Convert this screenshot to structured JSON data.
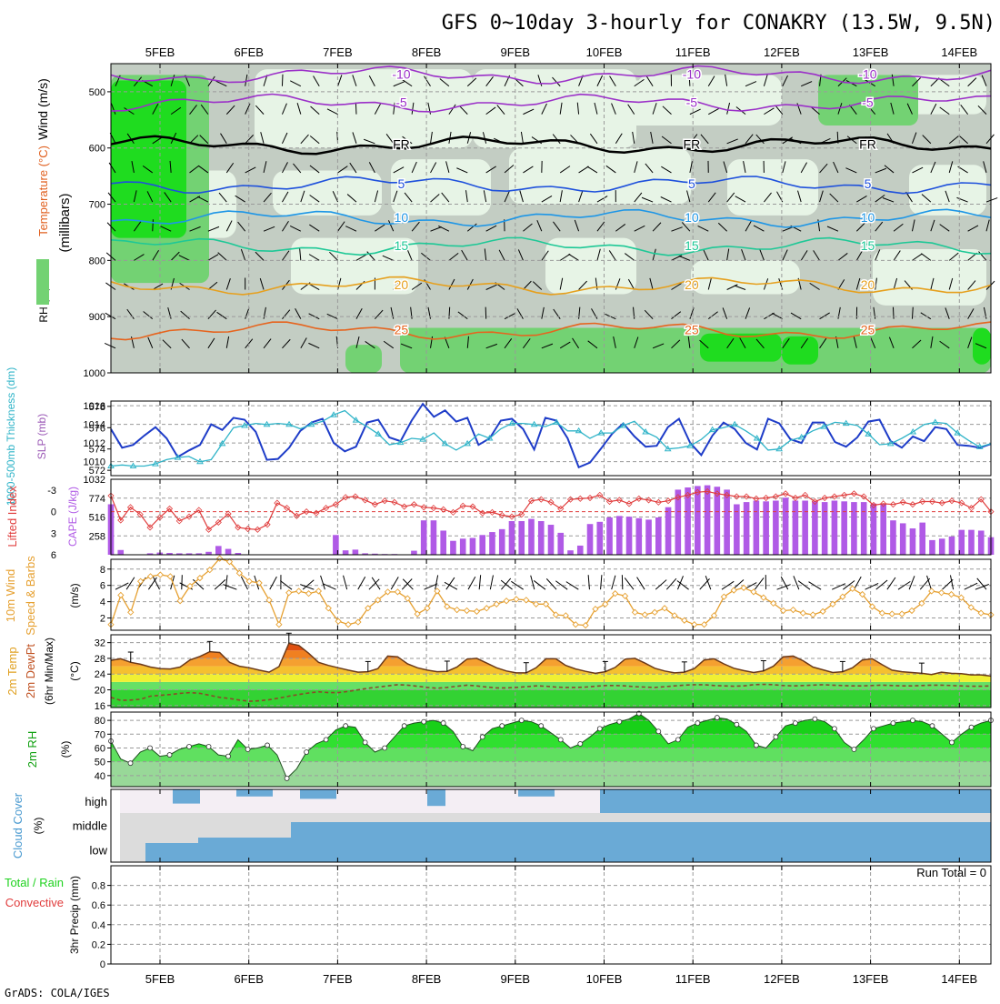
{
  "title": "GFS 0~10day 3-hourly for CONAKRY (13.5W, 9.5N)",
  "footer": "GrADS: COLA/IGES",
  "dates": [
    "5FEB",
    "6FEB",
    "7FEB",
    "8FEB",
    "9FEB",
    "10FEB",
    "11FEB",
    "12FEB",
    "13FEB",
    "14FEB"
  ],
  "colors": {
    "rh_dark": "#1fdc1f",
    "rh_mid": "#73d273",
    "rh_light_gray": "#c3cdc3",
    "rh_pale": "#e7f4e6",
    "temp_purple": "#9b30c8",
    "temp_blue": "#1e50dc",
    "temp_lblue": "#1e96e6",
    "temp_green": "#1ec896",
    "temp_orange": "#e6a01e",
    "temp_dorange": "#e6641e",
    "slp": "#1e3cc8",
    "thickness": "#30b4c8",
    "cape": "#b05ae6",
    "lifted": "#e03c3c",
    "wind10": "#e6a030",
    "temp2m": "#f5a030",
    "cloud": "#6aaad6",
    "precip": "#1ed21e"
  },
  "chart_data": [
    {
      "id": "upper-air",
      "type": "heatmap",
      "ylabel": "(millibars)",
      "yaxis_title_parts": [
        "RH (%)",
        "Temperature (°C)",
        "Wind (m/s)"
      ],
      "ylim": [
        1000,
        450
      ],
      "yticks": [
        500,
        600,
        700,
        800,
        900,
        1000
      ],
      "isotherms": [
        {
          "label": "-10",
          "pressure": 470
        },
        {
          "label": "-5",
          "pressure": 520
        },
        {
          "label": "FR",
          "pressure": 595
        },
        {
          "label": "5",
          "pressure": 665
        },
        {
          "label": "10",
          "pressure": 725
        },
        {
          "label": "15",
          "pressure": 775
        },
        {
          "label": "20",
          "pressure": 845
        },
        {
          "label": "25",
          "pressure": 925
        }
      ]
    },
    {
      "id": "slp-thickness",
      "type": "line",
      "ylabel_left": "1000-500mb Thickness (dm)",
      "ylabel_right": "SLP (mb)",
      "yticks_left": [
        572,
        574,
        576,
        578
      ],
      "yticks_right": [
        1010,
        1012,
        1014,
        1016
      ],
      "ylim_left": [
        571.5,
        578.5
      ],
      "ylim_right": [
        1008.5,
        1016.5
      ],
      "series": [
        {
          "name": "SLP (mb)",
          "axis": "right",
          "values": [
            1013.5,
            1011.5,
            1011.8,
            1012.8,
            1013.7,
            1012.5,
            1010.5,
            1011.2,
            1011.8,
            1014.0,
            1013.4,
            1014.7,
            1014.5,
            1013.2,
            1010.2,
            1010.3,
            1011.5,
            1013.3,
            1014.2,
            1014.6,
            1012.0,
            1011.1,
            1011.6,
            1014.2,
            1014.5,
            1012.6,
            1012.2,
            1014.4,
            1016.2,
            1014.8,
            1015.5,
            1014.3,
            1014.7,
            1011.8,
            1012.5,
            1014.4,
            1014.6,
            1013.5,
            1011.3,
            1014.7,
            1014.4,
            1012.5,
            1009.4,
            1009.9,
            1011.4,
            1013.0,
            1014.1,
            1012.7,
            1011.6,
            1011.7,
            1013.7,
            1014.6,
            1012.0,
            1010.7,
            1012.8,
            1014.2,
            1013.5,
            1012.0,
            1011.3,
            1014.6,
            1014.1,
            1012.4,
            1012.0,
            1014.2,
            1014.2,
            1012.1,
            1011.6,
            1012.6,
            1014.3,
            1014.5,
            1012.2,
            1011.5,
            1012.7,
            1012.2,
            1013.7,
            1013.5,
            1011.8,
            1011.7,
            1011.5,
            1011.9
          ]
        },
        {
          "name": "1000-500mb Thickness (dm)",
          "axis": "left",
          "values": [
            572.4,
            572.5,
            572.4,
            572.4,
            572.6,
            573.0,
            573.2,
            573.3,
            572.8,
            573.0,
            574.5,
            576.0,
            576.2,
            576.4,
            576.3,
            576.4,
            576.3,
            575.9,
            576.3,
            576.6,
            577.2,
            577.6,
            576.7,
            576.1,
            575.4,
            574.4,
            574.6,
            575.0,
            574.9,
            575.5,
            574.5,
            573.9,
            574.5,
            575.4,
            575.0,
            575.9,
            576.4,
            576.4,
            576.3,
            576.1,
            576.5,
            575.7,
            575.7,
            575.0,
            575.5,
            575.5,
            576.2,
            576.6,
            575.6,
            575.1,
            574.0,
            574.1,
            574.3,
            574.9,
            575.8,
            576.0,
            576.3,
            575.7,
            575.0,
            573.9,
            574.0,
            574.8,
            575.1,
            575.7,
            576.1,
            576.5,
            576.4,
            576.2,
            575.4,
            574.4,
            574.5,
            575.0,
            575.6,
            576.3,
            576.5,
            576.4,
            575.5,
            574.8,
            574.2,
            574.5
          ]
        }
      ]
    },
    {
      "id": "cape-lifted",
      "type": "bar",
      "ylabel_left": "Lifted Index",
      "ylabel_right": "CAPE (J/kg)",
      "yticks_left": [
        -3,
        0,
        3,
        6
      ],
      "yticks_left_labels": [
        "-3",
        "0",
        "3",
        "6"
      ],
      "yticks_right": [
        258,
        516,
        774,
        1032
      ],
      "ylim_right": [
        0,
        1032
      ],
      "series": [
        {
          "name": "CAPE (J/kg)",
          "values": [
            690,
            65,
            5,
            0,
            20,
            30,
            25,
            20,
            20,
            20,
            40,
            120,
            80,
            25,
            0,
            0,
            0,
            0,
            0,
            0,
            0,
            0,
            0,
            270,
            60,
            70,
            20,
            15,
            10,
            10,
            0,
            55,
            470,
            470,
            330,
            190,
            220,
            230,
            270,
            310,
            350,
            460,
            460,
            490,
            460,
            410,
            300,
            60,
            125,
            420,
            450,
            510,
            530,
            520,
            500,
            480,
            510,
            650,
            890,
            920,
            940,
            950,
            930,
            890,
            690,
            720,
            740,
            730,
            740,
            780,
            740,
            740,
            730,
            720,
            740,
            730,
            720,
            720,
            700,
            690,
            470,
            430,
            360,
            440,
            200,
            220,
            250,
            340,
            340,
            330,
            240
          ]
        },
        {
          "name": "Lifted Index",
          "values": [
            -2.2,
            1.2,
            -0.6,
            0.4,
            2.2,
            0.8,
            -0.4,
            1.3,
            0.7,
            -0.2,
            2.5,
            1.5,
            0.3,
            2.2,
            2.4,
            2.5,
            1.8,
            -1.2,
            -0.5,
            0.6,
            0.0,
            0.2,
            -0.5,
            -1.0,
            -2.0,
            -2.1,
            -1.6,
            -1.0,
            -1.5,
            -1.3,
            -0.7,
            -1.0,
            -0.6,
            -0.5,
            -0.3,
            0.1,
            -0.8,
            -0.7,
            0.2,
            0.1,
            0.5,
            0.7,
            0.4,
            -1.5,
            -1.7,
            -1.3,
            -0.4,
            -1.7,
            -1.8,
            -1.9,
            -2.3,
            -1.4,
            -1.6,
            -1.1,
            -1.8,
            -1.6,
            -1.3,
            -1.5,
            -2.0,
            -2.3,
            -2.7,
            -2.8,
            -2.5,
            -2.3,
            -2.1,
            -2.1,
            -1.8,
            -1.9,
            -2.1,
            -2.5,
            -1.9,
            -2.3,
            -1.4,
            -1.9,
            -2.1,
            -2.3,
            -2.5,
            -2.1,
            -0.9,
            -1.1,
            -1.0,
            -1.3,
            -1.0,
            -1.4,
            -1.4,
            -1.2,
            -1.5,
            -1.2,
            -0.5,
            -1.7,
            0.0
          ]
        }
      ]
    },
    {
      "id": "wind10m",
      "type": "line",
      "ylabel_left_parts": [
        "10m Wind",
        "Speed & Barbs"
      ],
      "ylabel_unit": "(m/s)",
      "yticks": [
        2,
        4,
        6,
        8
      ],
      "ylim": [
        0.5,
        9.2
      ],
      "series": [
        {
          "name": "10m Wind Speed",
          "values": [
            1.2,
            4.8,
            2.7,
            6.5,
            7.1,
            7.3,
            7.1,
            4.1,
            5.9,
            6.9,
            7.9,
            9.3,
            8.9,
            7.5,
            6.5,
            6.3,
            4.2,
            1.2,
            5.1,
            5.3,
            5.0,
            5.3,
            3.2,
            1.6,
            1.2,
            1.5,
            3.2,
            4.2,
            5.2,
            5.2,
            4.4,
            2.5,
            3.2,
            5.3,
            3.4,
            3.0,
            2.9,
            2.8,
            3.2,
            3.7,
            4.1,
            4.3,
            4.2,
            3.7,
            3.7,
            2.4,
            2.3,
            1.2,
            1.1,
            3.1,
            3.7,
            5.0,
            4.7,
            2.7,
            2.4,
            2.7,
            3.2,
            2.3,
            1.7,
            1.2,
            1.2,
            2.3,
            4.6,
            5.4,
            5.7,
            5.2,
            4.5,
            3.8,
            2.9,
            3.0,
            2.6,
            2.4,
            2.8,
            3.7,
            4.6,
            5.6,
            4.9,
            3.4,
            2.6,
            2.5,
            2.5,
            2.9,
            3.8,
            5.3,
            5.1,
            4.9,
            4.5,
            3.3,
            2.6,
            2.4
          ]
        }
      ]
    },
    {
      "id": "temp2m",
      "type": "area",
      "ylabel_parts": [
        "2m Temp",
        "2m DewPt",
        "(6hr Min/Max)"
      ],
      "ylabel_unit": "(°C)",
      "yticks": [
        16,
        20,
        24,
        28,
        32
      ],
      "ylim": [
        15.5,
        34
      ],
      "series": [
        {
          "name": "2m Temp",
          "values": [
            27.5,
            27.9,
            27.0,
            26.5,
            25.8,
            25.4,
            25.3,
            25.8,
            27.6,
            28.5,
            29.7,
            29.5,
            27.0,
            26.0,
            25.6,
            25.0,
            24.5,
            25.9,
            31.8,
            31.3,
            29.3,
            27.0,
            26.2,
            25.6,
            25.0,
            24.5,
            24.6,
            25.4,
            28.6,
            28.4,
            26.6,
            25.6,
            25.0,
            24.6,
            24.7,
            25.8,
            27.8,
            28.0,
            26.8,
            25.6,
            24.8,
            24.3,
            24.3,
            25.6,
            27.9,
            27.9,
            26.2,
            25.3,
            24.7,
            24.2,
            24.6,
            25.7,
            27.8,
            28.0,
            26.8,
            25.5,
            24.8,
            24.3,
            24.5,
            25.4,
            27.6,
            27.9,
            26.6,
            25.5,
            24.9,
            24.4,
            24.8,
            26.0,
            28.4,
            28.6,
            27.4,
            25.8,
            25.1,
            24.4,
            24.6,
            25.6,
            27.6,
            27.9,
            26.4,
            25.0,
            24.6,
            24.4,
            24.2,
            23.9,
            24.5,
            24.2,
            24.1,
            23.8,
            23.8,
            23.5
          ]
        },
        {
          "name": "2m DewPt",
          "values": [
            18.1,
            17.3,
            17.4,
            17.6,
            18.4,
            18.6,
            18.8,
            19.1,
            19.3,
            19.1,
            18.6,
            18.1,
            17.8,
            17.4,
            17.1,
            17.2,
            17.5,
            17.9,
            18.4,
            18.8,
            19.2,
            19.5,
            19.3,
            19.3,
            19.6,
            20.0,
            20.4,
            20.7,
            21.0,
            21.3,
            21.2,
            20.9,
            20.6,
            20.4,
            20.6,
            20.9,
            21.2,
            21.0,
            20.7,
            20.5,
            20.5,
            20.6,
            20.8,
            21.0,
            20.9,
            20.7,
            20.6,
            20.6,
            20.7,
            20.9,
            21.1,
            21.1,
            21.0,
            20.8,
            20.7,
            20.6,
            20.8,
            21.0,
            21.2,
            21.3,
            21.3,
            21.1,
            21.0,
            20.9,
            21.0,
            21.3,
            21.4,
            21.3,
            21.1,
            21.0,
            21.1,
            21.2,
            21.3,
            21.2,
            21.1,
            21.0,
            21.0,
            21.1,
            21.2,
            21.1,
            21.0,
            21.0,
            21.1,
            21.2,
            21.2,
            21.1,
            21.0,
            20.9,
            20.9,
            21.0
          ]
        }
      ]
    },
    {
      "id": "rh2m",
      "type": "area",
      "ylabel": "2m RH",
      "ylabel_unit": "(%)",
      "yticks": [
        40,
        50,
        60,
        70,
        80
      ],
      "ylim": [
        32,
        86
      ],
      "series": [
        {
          "name": "2m RH",
          "values": [
            65,
            52,
            49,
            57,
            60,
            54,
            55,
            59,
            61,
            63,
            61,
            55,
            54,
            66,
            59,
            60,
            62,
            55,
            38,
            45,
            57,
            63,
            66,
            73,
            76,
            75,
            64,
            57,
            60,
            68,
            76,
            78,
            79,
            80,
            78,
            72,
            61,
            58,
            68,
            74,
            76,
            78,
            80,
            79,
            76,
            71,
            66,
            60,
            63,
            68,
            74,
            77,
            79,
            81,
            85,
            80,
            72,
            63,
            66,
            75,
            78,
            80,
            82,
            81,
            77,
            72,
            62,
            60,
            68,
            76,
            78,
            80,
            81,
            79,
            74,
            64,
            59,
            66,
            74,
            76,
            78,
            79,
            80,
            79,
            76,
            70,
            64,
            70,
            75,
            78,
            80
          ]
        }
      ]
    },
    {
      "id": "cloud-cover",
      "type": "area",
      "ylabel": "Cloud Cover",
      "ylabel_unit": "(%)",
      "categories": [
        "high",
        "middle",
        "low"
      ]
    },
    {
      "id": "precip",
      "type": "bar",
      "ylabel_left_parts": [
        "Total / Rain",
        "Convective"
      ],
      "ylabel_unit": "3hr Precip (mm)",
      "yticks": [
        0,
        0.2,
        0.4,
        0.6,
        0.8
      ],
      "ylim": [
        0,
        1
      ],
      "run_total_label": "Run Total = 0",
      "values": []
    }
  ]
}
